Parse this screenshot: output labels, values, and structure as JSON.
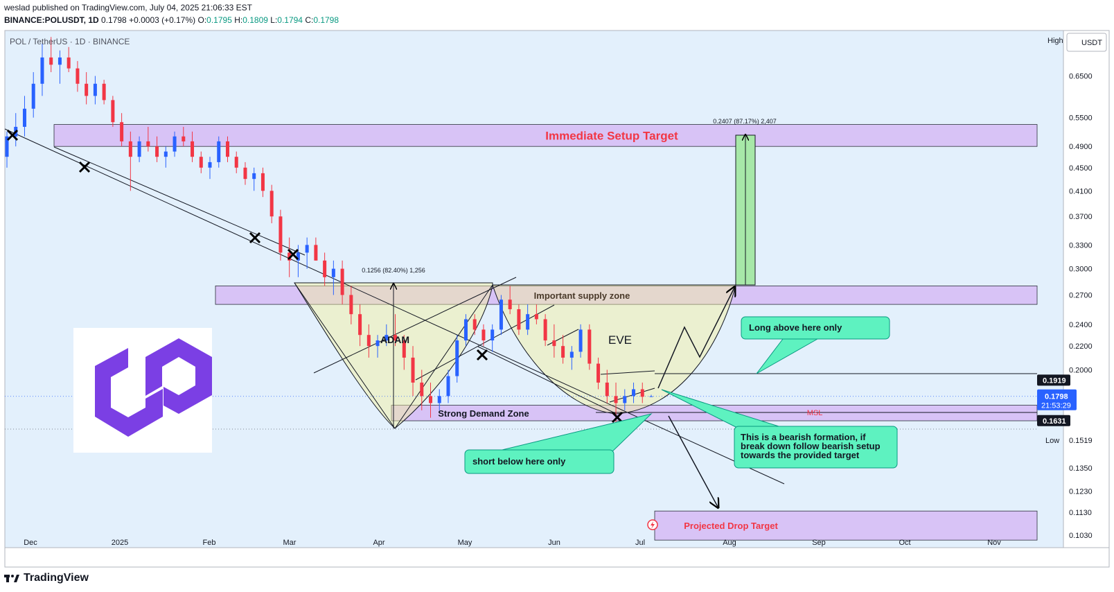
{
  "header": {
    "publisher_line": "weslad published on TradingView.com, July 04, 2025 21:06:33 EST",
    "symbol": "BINANCE:POLUSDT, 1D",
    "price": "0.1798",
    "change": "+0.0003 (+0.17%)",
    "o_label": "O:",
    "o_val": "0.1795",
    "h_label": "H:",
    "h_val": "0.1809",
    "l_label": "L:",
    "l_val": "0.1794",
    "c_label": "C:",
    "c_val": "0.1798"
  },
  "chart_title": "POL / TetherUS · 1D · BINANCE",
  "currency": "USDT",
  "high_label": "High",
  "low_label": "Low",
  "low_value": "0.1519",
  "footer_brand": "TradingView",
  "colors": {
    "background": "#e3f0fc",
    "up": "#089981",
    "down": "#f23645",
    "zone_purple": "#d6bbf5",
    "callout": "#5ef2c0"
  },
  "chart_data": {
    "type": "candlestick",
    "title": "POL / TetherUS · 1D · BINANCE",
    "scale": "log",
    "ylim": [
      0.098,
      0.78
    ],
    "y_ticks": [
      "0.6500",
      "0.5500",
      "0.4900",
      "0.4500",
      "0.4100",
      "0.3700",
      "0.3300",
      "0.3000",
      "0.2700",
      "0.2400",
      "0.2200",
      "0.2000",
      "0.1350",
      "0.1230",
      "0.1130",
      "0.1030"
    ],
    "x_ticks": [
      "Dec",
      "2025",
      "Feb",
      "Mar",
      "Apr",
      "May",
      "Jun",
      "Jul",
      "Aug",
      "Sep",
      "Oct",
      "Nov"
    ],
    "price_tags": [
      {
        "value": "0.1919",
        "style": "dark"
      },
      {
        "value": "0.1798",
        "style": "blue",
        "countdown": "21:53:29"
      },
      {
        "value": "0.1631",
        "style": "dark"
      }
    ],
    "zones": [
      {
        "name": "Immediate Setup Target",
        "low": 0.49,
        "high": 0.535
      },
      {
        "name": "Important supply zone",
        "low": 0.26,
        "high": 0.28
      },
      {
        "name": "Strong Demand Zone",
        "low": 0.163,
        "high": 0.1735
      },
      {
        "name": "Projected Drop Target",
        "low": 0.101,
        "high": 0.1135
      }
    ],
    "measurements": [
      {
        "text": "0.2407 (87.17%) 2,407"
      },
      {
        "text": "0.1256 (82.40%) 1,256"
      }
    ],
    "annotations": [
      "ADAM",
      "EVE",
      "MSL"
    ],
    "callouts": [
      "Long above here only",
      "short below here only",
      "This is a bearish formation, if break down follow bearish setup towards the provided target"
    ],
    "candles_daily_ohlc": [
      [
        0.47,
        0.52,
        0.45,
        0.51
      ],
      [
        0.51,
        0.56,
        0.49,
        0.53
      ],
      [
        0.53,
        0.6,
        0.51,
        0.57
      ],
      [
        0.57,
        0.66,
        0.55,
        0.63
      ],
      [
        0.63,
        0.74,
        0.6,
        0.7
      ],
      [
        0.7,
        0.76,
        0.66,
        0.68
      ],
      [
        0.68,
        0.72,
        0.63,
        0.7
      ],
      [
        0.7,
        0.73,
        0.66,
        0.67
      ],
      [
        0.67,
        0.69,
        0.61,
        0.63
      ],
      [
        0.63,
        0.66,
        0.58,
        0.6
      ],
      [
        0.6,
        0.65,
        0.58,
        0.63
      ],
      [
        0.63,
        0.64,
        0.58,
        0.59
      ],
      [
        0.59,
        0.6,
        0.53,
        0.54
      ],
      [
        0.54,
        0.56,
        0.49,
        0.5
      ],
      [
        0.5,
        0.52,
        0.41,
        0.47
      ],
      [
        0.47,
        0.51,
        0.46,
        0.5
      ],
      [
        0.5,
        0.53,
        0.48,
        0.49
      ],
      [
        0.49,
        0.51,
        0.46,
        0.47
      ],
      [
        0.47,
        0.49,
        0.45,
        0.48
      ],
      [
        0.48,
        0.52,
        0.47,
        0.51
      ],
      [
        0.51,
        0.53,
        0.49,
        0.5
      ],
      [
        0.5,
        0.52,
        0.46,
        0.47
      ],
      [
        0.47,
        0.48,
        0.44,
        0.45
      ],
      [
        0.45,
        0.47,
        0.43,
        0.46
      ],
      [
        0.46,
        0.51,
        0.45,
        0.5
      ],
      [
        0.5,
        0.51,
        0.46,
        0.47
      ],
      [
        0.47,
        0.48,
        0.44,
        0.45
      ],
      [
        0.45,
        0.46,
        0.42,
        0.43
      ],
      [
        0.43,
        0.45,
        0.41,
        0.44
      ],
      [
        0.44,
        0.45,
        0.4,
        0.41
      ],
      [
        0.41,
        0.42,
        0.36,
        0.37
      ],
      [
        0.37,
        0.38,
        0.31,
        0.32
      ],
      [
        0.32,
        0.34,
        0.29,
        0.31
      ],
      [
        0.31,
        0.33,
        0.29,
        0.32
      ],
      [
        0.32,
        0.34,
        0.3,
        0.33
      ],
      [
        0.33,
        0.34,
        0.31,
        0.31
      ],
      [
        0.31,
        0.32,
        0.28,
        0.29
      ],
      [
        0.29,
        0.31,
        0.27,
        0.3
      ],
      [
        0.3,
        0.31,
        0.26,
        0.27
      ],
      [
        0.27,
        0.28,
        0.24,
        0.25
      ],
      [
        0.25,
        0.26,
        0.22,
        0.23
      ],
      [
        0.23,
        0.24,
        0.21,
        0.22
      ],
      [
        0.22,
        0.23,
        0.21,
        0.225
      ],
      [
        0.225,
        0.24,
        0.22,
        0.23
      ],
      [
        0.23,
        0.25,
        0.22,
        0.225
      ],
      [
        0.225,
        0.23,
        0.2,
        0.21
      ],
      [
        0.21,
        0.22,
        0.18,
        0.19
      ],
      [
        0.19,
        0.2,
        0.17,
        0.18
      ],
      [
        0.18,
        0.19,
        0.165,
        0.175
      ],
      [
        0.175,
        0.185,
        0.17,
        0.18
      ],
      [
        0.18,
        0.2,
        0.175,
        0.195
      ],
      [
        0.195,
        0.23,
        0.19,
        0.225
      ],
      [
        0.225,
        0.25,
        0.22,
        0.245
      ],
      [
        0.245,
        0.25,
        0.23,
        0.235
      ],
      [
        0.235,
        0.24,
        0.22,
        0.225
      ],
      [
        0.225,
        0.24,
        0.215,
        0.235
      ],
      [
        0.235,
        0.27,
        0.23,
        0.265
      ],
      [
        0.265,
        0.28,
        0.25,
        0.255
      ],
      [
        0.255,
        0.26,
        0.23,
        0.235
      ],
      [
        0.235,
        0.26,
        0.23,
        0.25
      ],
      [
        0.25,
        0.26,
        0.24,
        0.245
      ],
      [
        0.245,
        0.25,
        0.22,
        0.225
      ],
      [
        0.225,
        0.24,
        0.21,
        0.22
      ],
      [
        0.22,
        0.23,
        0.205,
        0.21
      ],
      [
        0.21,
        0.22,
        0.2,
        0.215
      ],
      [
        0.215,
        0.24,
        0.21,
        0.235
      ],
      [
        0.235,
        0.24,
        0.2,
        0.205
      ],
      [
        0.205,
        0.21,
        0.185,
        0.19
      ],
      [
        0.19,
        0.2,
        0.175,
        0.18
      ],
      [
        0.18,
        0.19,
        0.16,
        0.175
      ],
      [
        0.175,
        0.185,
        0.17,
        0.18
      ],
      [
        0.18,
        0.19,
        0.175,
        0.185
      ],
      [
        0.185,
        0.19,
        0.175,
        0.1795
      ],
      [
        0.1795,
        0.1809,
        0.1794,
        0.1798
      ]
    ]
  }
}
